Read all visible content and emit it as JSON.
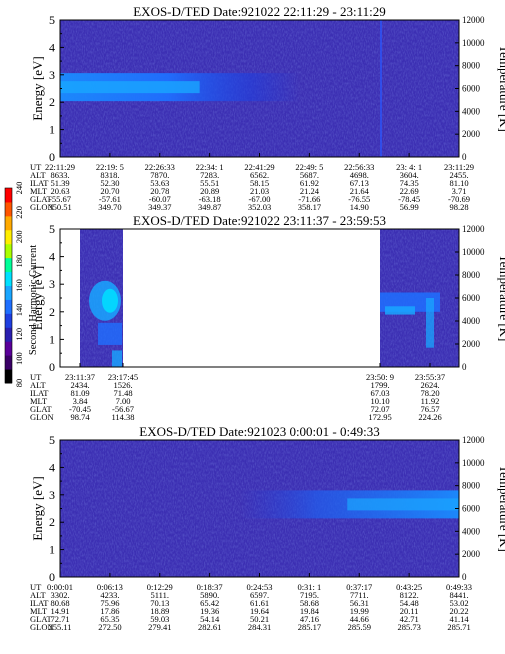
{
  "panels": [
    {
      "title": "EXOS-D/TED   Date:921022  22:11:29 - 23:11:29",
      "ylabel": "Energy [eV]",
      "y2label": "Temperature [K]",
      "y_ticks": [
        "0",
        "1",
        "2",
        "3",
        "4",
        "5"
      ],
      "y2_ticks": [
        "0",
        "2000",
        "4000",
        "6000",
        "8000",
        "10000",
        "12000"
      ],
      "ephemeris": [
        {
          "label": "UT",
          "values": [
            "22:11:29",
            "22:19: 5",
            "22:26:33",
            "22:34: 1",
            "22:41:29",
            "22:49: 5",
            "22:56:33",
            "23: 4: 1",
            "23:11:29"
          ]
        },
        {
          "label": "ALT",
          "values": [
            "8633.",
            "8318.",
            "7870.",
            "7283.",
            "6562.",
            "5687.",
            "4698.",
            "3604.",
            "2455."
          ]
        },
        {
          "label": "ILAT",
          "values": [
            "51.39",
            "52.30",
            "53.63",
            "55.51",
            "58.15",
            "61.92",
            "67.13",
            "74.35",
            "81.10"
          ]
        },
        {
          "label": "MLT",
          "values": [
            "20.63",
            "20.70",
            "20.78",
            "20.89",
            "21.03",
            "21.24",
            "21.64",
            "22.69",
            "3.71"
          ]
        },
        {
          "label": "GLAT",
          "values": [
            "-55.67",
            "-57.61",
            "-60.07",
            "-63.18",
            "-67.00",
            "-71.66",
            "-76.55",
            "-78.45",
            "-70.69"
          ]
        },
        {
          "label": "GLON",
          "values": [
            "350.51",
            "349.70",
            "349.37",
            "349.87",
            "352.03",
            "358.17",
            "14.90",
            "56.99",
            "98.28"
          ]
        }
      ]
    },
    {
      "title": "EXOS-D/TED   Date:921022  23:11:37 - 23:59:53",
      "ylabel": "Energy [eV]",
      "y2label": "Temperature [K]",
      "y_ticks": [
        "0",
        "1",
        "2",
        "3",
        "4",
        "5"
      ],
      "y2_ticks": [
        "0",
        "2000",
        "4000",
        "6000",
        "8000",
        "10000",
        "12000"
      ],
      "ephemeris": [
        {
          "label": "UT",
          "left": [
            "23:11:37",
            "23:17:45"
          ],
          "right": [
            "23:50: 9",
            "23:55:37"
          ]
        },
        {
          "label": "ALT",
          "left": [
            "2434.",
            "1526."
          ],
          "right": [
            "1799.",
            "2624."
          ]
        },
        {
          "label": "ILAT",
          "left": [
            "81.09",
            "71.48"
          ],
          "right": [
            "67.03",
            "78.20"
          ]
        },
        {
          "label": "MLT",
          "left": [
            "3.84",
            "7.00"
          ],
          "right": [
            "10.10",
            "11.92"
          ]
        },
        {
          "label": "GLAT",
          "left": [
            "-70.45",
            "-56.67"
          ],
          "right": [
            "72.07",
            "76.57"
          ]
        },
        {
          "label": "GLON",
          "left": [
            "98.74",
            "114.38"
          ],
          "right": [
            "172.95",
            "224.26"
          ]
        }
      ]
    },
    {
      "title": "EXOS-D/TED   Date:921023  0:00:01 - 0:49:33",
      "ylabel": "Energy [eV]",
      "y2label": "Temperature [K]",
      "y_ticks": [
        "0",
        "1",
        "2",
        "3",
        "4",
        "5"
      ],
      "y2_ticks": [
        "0",
        "2000",
        "4000",
        "6000",
        "8000",
        "10000",
        "12000"
      ],
      "ephemeris": [
        {
          "label": "UT",
          "values": [
            "0:00:01",
            "0:06:13",
            "0:12:29",
            "0:18:37",
            "0:24:53",
            "0:31: 1",
            "0:37:17",
            "0:43:25",
            "0:49:33"
          ]
        },
        {
          "label": "ALT",
          "values": [
            "3302.",
            "4233.",
            "5111.",
            "5890.",
            "6597.",
            "7195.",
            "7711.",
            "8122.",
            "8441."
          ]
        },
        {
          "label": "ILAT",
          "values": [
            "80.68",
            "75.96",
            "70.13",
            "65.42",
            "61.61",
            "58.68",
            "56.31",
            "54.48",
            "53.02"
          ]
        },
        {
          "label": "MLT",
          "values": [
            "14.91",
            "17.86",
            "18.89",
            "19.36",
            "19.64",
            "19.84",
            "19.99",
            "20.11",
            "20.22"
          ]
        },
        {
          "label": "GLAT",
          "values": [
            "72.71",
            "65.35",
            "59.03",
            "54.14",
            "50.21",
            "47.16",
            "44.66",
            "42.71",
            "41.14"
          ]
        },
        {
          "label": "GLON",
          "values": [
            "255.11",
            "272.50",
            "279.41",
            "282.61",
            "284.31",
            "285.17",
            "285.59",
            "285.73",
            "285.71"
          ]
        }
      ]
    }
  ],
  "colorbar": {
    "label": "Second Harmonic Current",
    "ticks": [
      "80",
      "100",
      "120",
      "140",
      "160",
      "180",
      "200",
      "220",
      "240"
    ],
    "colors": [
      "#000000",
      "#3a0066",
      "#5a0099",
      "#2a1fb0",
      "#1f3fe0",
      "#1f6fff",
      "#19a6ff",
      "#00e0ff",
      "#00ff99",
      "#aaff00",
      "#ffee00",
      "#ffaa00",
      "#ff5500",
      "#ff0000"
    ]
  },
  "chart_data": [
    {
      "type": "heatmap",
      "title": "EXOS-D/TED   Date:921022  22:11:29 - 23:11:29",
      "xlabel": "UT",
      "ylabel": "Energy [eV]",
      "y2label": "Temperature [K]",
      "ylim": [
        0,
        5
      ],
      "y2lim": [
        0,
        12000
      ],
      "x": [
        "22:11:29",
        "22:19: 5",
        "22:26:33",
        "22:34: 1",
        "22:41:29",
        "22:49: 5",
        "22:56:33",
        "23: 4: 1",
        "23:11:29"
      ],
      "bands": [
        {
          "ut_start": "22:11:29",
          "ut_end": "22:34:01",
          "energy_center": 2.55,
          "energy_width": 0.45,
          "level": 150
        },
        {
          "ut_start": "22:34:01",
          "ut_end": "22:41:29",
          "energy_center": 2.7,
          "energy_width": 0.3,
          "level": 130
        }
      ],
      "background_level": 118,
      "colorbar_range": [
        80,
        240
      ]
    },
    {
      "type": "heatmap",
      "title": "EXOS-D/TED   Date:921022  23:11:37 - 23:59:53",
      "xlabel": "UT",
      "ylabel": "Energy [eV]",
      "y2label": "Temperature [K]",
      "ylim": [
        0,
        5
      ],
      "y2lim": [
        0,
        12000
      ],
      "data_segments": [
        {
          "ut_start": "23:11:37",
          "ut_end": "23:17:45",
          "peak_energy": 2.4,
          "peak_level": 165
        },
        {
          "ut_start": "23:50:09",
          "ut_end": "23:59:53",
          "peak_energy": 2.1,
          "peak_level": 145
        }
      ],
      "background_level": 118,
      "colorbar_range": [
        80,
        240
      ]
    },
    {
      "type": "heatmap",
      "title": "EXOS-D/TED   Date:921023  0:00:01 - 0:49:33",
      "xlabel": "UT",
      "ylabel": "Energy [eV]",
      "y2label": "Temperature [K]",
      "ylim": [
        0,
        5
      ],
      "y2lim": [
        0,
        12000
      ],
      "x": [
        "0:00:01",
        "0:06:13",
        "0:12:29",
        "0:18:37",
        "0:24:53",
        "0:31: 1",
        "0:37:17",
        "0:43:25",
        "0:49:33"
      ],
      "bands": [
        {
          "ut_start": "0:31:01",
          "ut_end": "0:49:33",
          "energy_center": 2.65,
          "energy_width": 0.4,
          "level": 140
        }
      ],
      "background_level": 118,
      "colorbar_range": [
        80,
        240
      ]
    }
  ]
}
